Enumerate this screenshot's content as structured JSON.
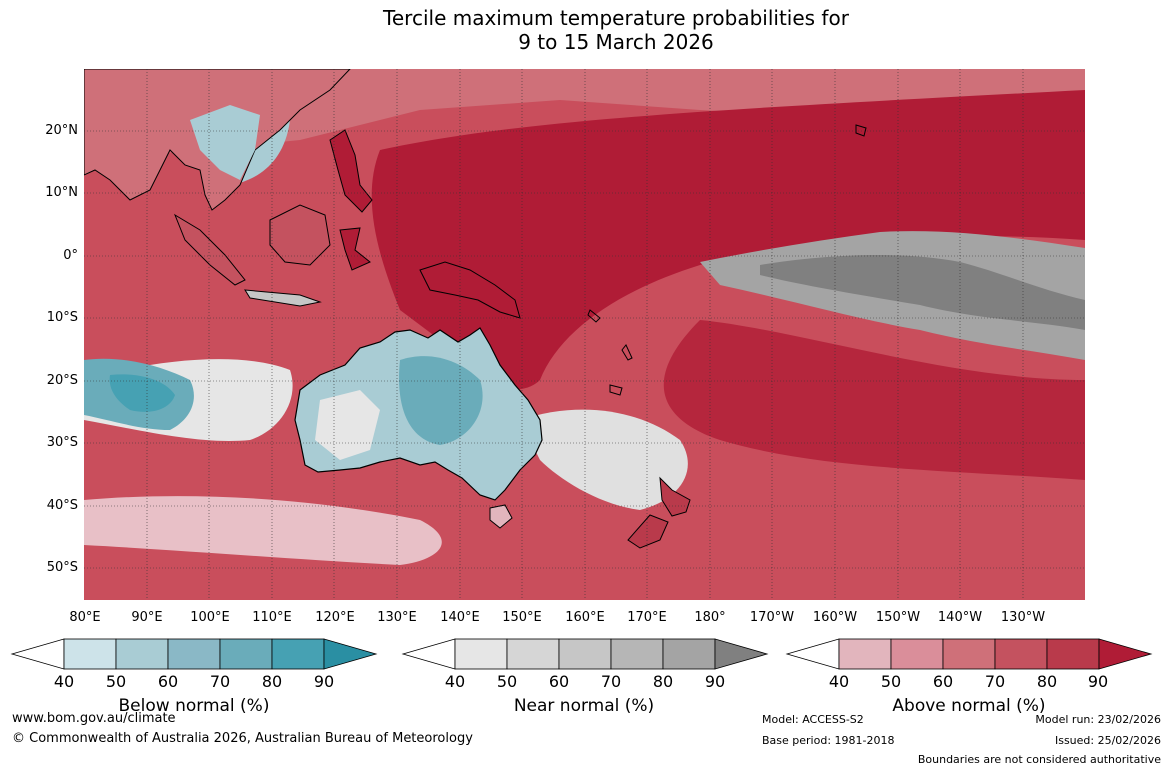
{
  "title": {
    "line1": "Tercile maximum temperature probabilities for",
    "line2": "9 to 15 March 2026"
  },
  "map": {
    "lat_labels": [
      "20°N",
      "10°N",
      "0°",
      "10°S",
      "20°S",
      "30°S",
      "40°S",
      "50°S"
    ],
    "lon_labels": [
      "80°E",
      "90°E",
      "100°E",
      "110°E",
      "120°E",
      "130°E",
      "140°E",
      "150°E",
      "160°E",
      "170°E",
      "180°",
      "170°W",
      "160°W",
      "150°W",
      "140°W",
      "130°W"
    ],
    "extent": {
      "lon_min": 80,
      "lon_max": 240,
      "lat_min": -55,
      "lat_max": 30
    }
  },
  "colorbars": [
    {
      "name": "below",
      "title": "Below normal (%)",
      "ticks": [
        "40",
        "50",
        "60",
        "70",
        "80",
        "90"
      ],
      "colors": [
        "#ffffff",
        "#cde3e9",
        "#a9ccd4",
        "#8ab8c6",
        "#6aacba",
        "#46a1b3",
        "#2a8fa3"
      ]
    },
    {
      "name": "near",
      "title": "Near normal (%)",
      "ticks": [
        "40",
        "50",
        "60",
        "70",
        "80",
        "90"
      ],
      "colors": [
        "#ffffff",
        "#e6e6e6",
        "#d6d6d6",
        "#c6c6c6",
        "#b6b6b6",
        "#a4a4a4",
        "#808080"
      ]
    },
    {
      "name": "above",
      "title": "Above normal (%)",
      "ticks": [
        "40",
        "50",
        "60",
        "70",
        "80",
        "90"
      ],
      "colors": [
        "#ffffff",
        "#e2b5bd",
        "#da8e9a",
        "#cf7079",
        "#c4525f",
        "#b93a4b",
        "#b01c36"
      ]
    }
  ],
  "footer": {
    "website": "www.bom.gov.au/climate",
    "copyright": "© Commonwealth of Australia 2026, Australian Bureau of Meteorology",
    "model": "Model: ACCESS-S2",
    "base_period": "Base period: 1981-2018",
    "model_run": "Model run: 23/02/2026",
    "issued": "Issued: 25/02/2026",
    "disclaimer": "Boundaries are not considered authoritative"
  }
}
